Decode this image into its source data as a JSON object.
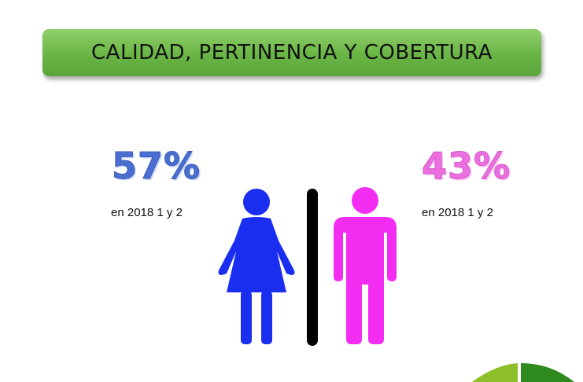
{
  "header": {
    "title": "CALIDAD, PERTINENCIA Y COBERTURA"
  },
  "left_stat": {
    "value": "57%",
    "caption": "en 2018 1 y 2",
    "color": "#4a6fd1"
  },
  "right_stat": {
    "value": "43%",
    "caption": "en 2018 1 y 2",
    "color": "#ec6fe0"
  },
  "icons": {
    "woman": "woman-icon",
    "man": "man-icon",
    "divider": "divider-bar"
  },
  "colors": {
    "banner": "#6ab545",
    "woman_figure": "#1a2ef0",
    "man_figure": "#f22cf0",
    "divider": "#000000",
    "corner_light": "#8cbf2a",
    "corner_dark": "#2f8a1e"
  }
}
